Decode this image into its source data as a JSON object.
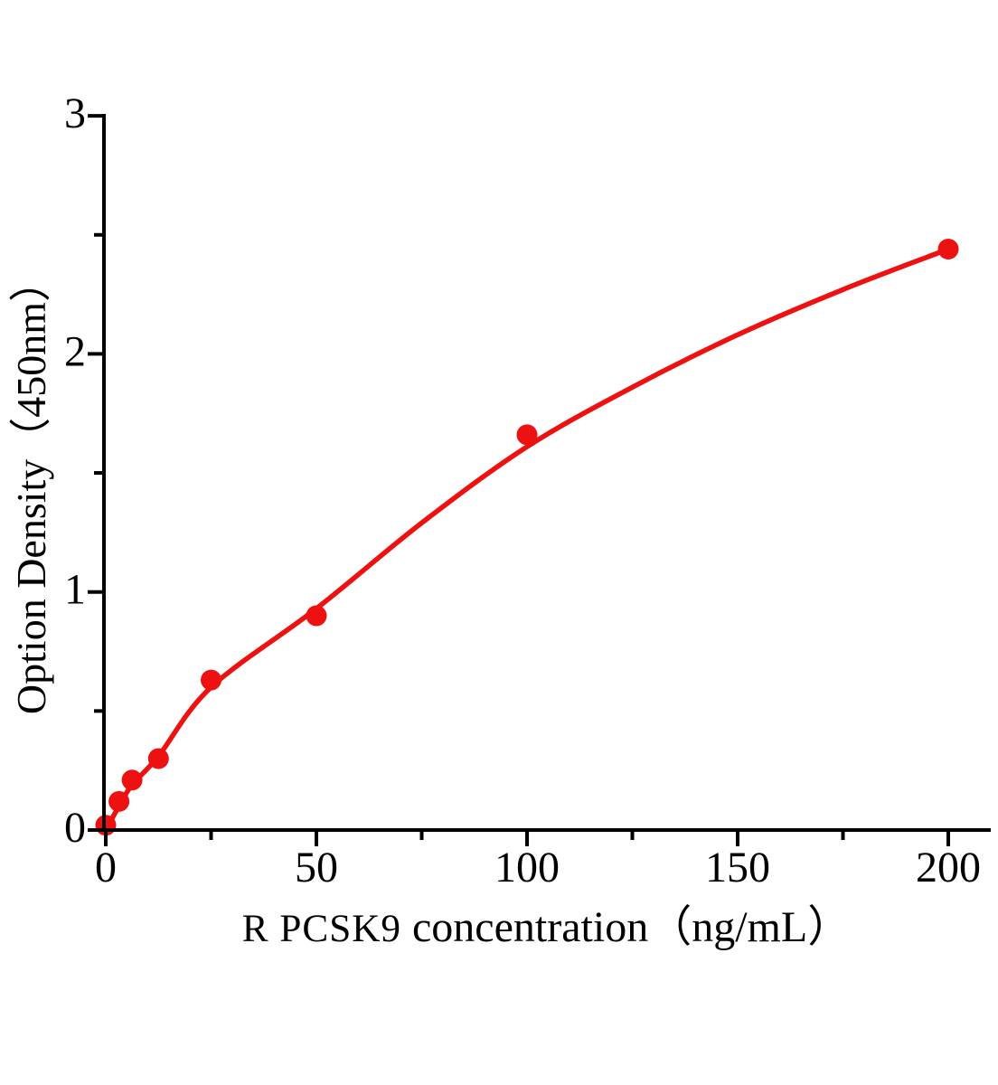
{
  "figure": {
    "background": "#ffffff",
    "accent_red": "#ee1111",
    "axis_color": "#000000"
  },
  "chart_data": {
    "type": "scatter",
    "title": "",
    "xlabel": "R PCSK9 concentration（ng/mL）",
    "xlabel_prefix": "R PCSK9",
    "xlabel_rest": " concentration（ng/mL）",
    "ylabel": "Option Density（450nm）",
    "xlim": [
      0,
      210
    ],
    "ylim": [
      0,
      3
    ],
    "grid": false,
    "legend_position": "none",
    "x_major_ticks": [
      0,
      50,
      100,
      150,
      200
    ],
    "x_minor_ticks": [
      25,
      75,
      125,
      175
    ],
    "x_tick_labels": [
      "0",
      "50",
      "100",
      "150",
      "200"
    ],
    "y_major_ticks": [
      0,
      1,
      2,
      3
    ],
    "y_minor_ticks": [
      0.5,
      1.5,
      2.5
    ],
    "y_tick_labels": [
      "0",
      "1",
      "2",
      "3"
    ],
    "series": [
      {
        "name": "standard-points",
        "type": "scatter",
        "color": "#ee1111",
        "x": [
          0,
          3.125,
          6.25,
          12.5,
          25,
          50,
          100,
          200
        ],
        "y": [
          0.02,
          0.12,
          0.21,
          0.3,
          0.63,
          0.9,
          1.66,
          2.44
        ]
      },
      {
        "name": "fit-curve",
        "type": "line",
        "color": "#ee1111",
        "x": [
          0,
          3.125,
          6.25,
          12.5,
          25,
          50,
          75,
          100,
          125,
          150,
          175,
          200
        ],
        "y": [
          0.0,
          0.1,
          0.19,
          0.31,
          0.6,
          0.93,
          1.29,
          1.61,
          1.86,
          2.08,
          2.27,
          2.44
        ]
      }
    ]
  }
}
